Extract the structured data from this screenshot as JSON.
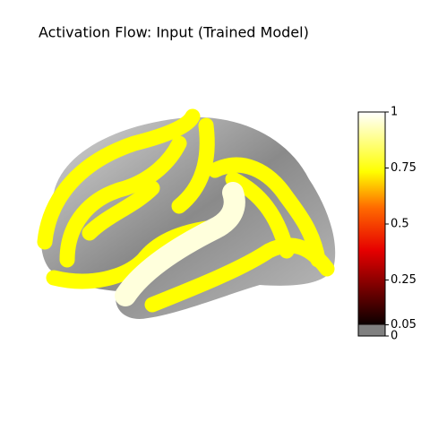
{
  "chart_data": {
    "type": "surface",
    "title": "Activation Flow: Input (Trained Model)",
    "colorbar": {
      "lim": [
        0,
        1
      ],
      "ticks": [
        0,
        0.05,
        0.25,
        0.5,
        0.75,
        1
      ]
    }
  }
}
